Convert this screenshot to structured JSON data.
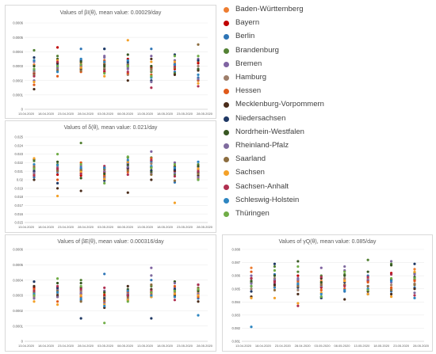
{
  "legend": {
    "entries": [
      {
        "name": "Baden-Württemberg",
        "color": "#ed7d31"
      },
      {
        "name": "Bayern",
        "color": "#c00000"
      },
      {
        "name": "Berlin",
        "color": "#2e75b6"
      },
      {
        "name": "Brandenburg",
        "color": "#548235"
      },
      {
        "name": "Bremen",
        "color": "#8064a2"
      },
      {
        "name": "Hamburg",
        "color": "#9e7e6a"
      },
      {
        "name": "Hessen",
        "color": "#e05a1a"
      },
      {
        "name": "Mecklenburg-Vorpommern",
        "color": "#4a2c1a"
      },
      {
        "name": "Niedersachsen",
        "color": "#1f3864"
      },
      {
        "name": "Nordrhein-Westfalen",
        "color": "#385723"
      },
      {
        "name": "Rheinland-Pfalz",
        "color": "#7f6b9e"
      },
      {
        "name": "Saarland",
        "color": "#8c6d3f"
      },
      {
        "name": "Sachsen",
        "color": "#f4a128"
      },
      {
        "name": "Sachsen-Anhalt",
        "color": "#b03050"
      },
      {
        "name": "Schleswig-Holstein",
        "color": "#2e86c1"
      },
      {
        "name": "Thüringen",
        "color": "#70ad47"
      }
    ]
  },
  "chart_data": [
    {
      "type": "scatter",
      "title": "Values of βI(θ), mean value: 0.00029/day",
      "ylim": [
        0,
        0.0006
      ],
      "yticks": [
        "0",
        "0.0001",
        "0.0002",
        "0.0003",
        "0.0004",
        "0.0005",
        "0.0006"
      ],
      "xticks": [
        "13.04.2020",
        "18.04.2020",
        "23.04.2020",
        "28.04.2020",
        "03.05.2020",
        "08.05.2020",
        "13.05.2020",
        "18.05.2020",
        "23.05.2020",
        "28.05.2020"
      ],
      "x": [
        0,
        1,
        2,
        3,
        4,
        5,
        6,
        7
      ],
      "series": [
        [
          0.00031,
          0.00033,
          0.00032,
          0.00033,
          0.00031,
          0.0003,
          0.00031,
          0.00033
        ],
        [
          0.00025,
          0.00043,
          0.0003,
          0.00026,
          0.00035,
          0.00029,
          0.00028,
          0.00032
        ],
        [
          0.00027,
          0.00031,
          0.00042,
          0.00042,
          0.00032,
          0.00042,
          0.00026,
          0.00022
        ],
        [
          0.00041,
          0.00037,
          0.00029,
          0.00028,
          0.0003,
          0.00026,
          0.00025,
          0.0002
        ],
        [
          0.00033,
          0.00032,
          0.0003,
          0.00037,
          0.00028,
          0.00037,
          0.00032,
          0.00035
        ],
        [
          0.00026,
          0.00028,
          0.00033,
          0.00029,
          0.00024,
          0.00027,
          0.0003,
          0.0003
        ],
        [
          0.00017,
          0.00023,
          0.00026,
          0.00034,
          0.00025,
          0.00024,
          0.00029,
          0.0002
        ],
        [
          0.00014,
          0.00032,
          0.00028,
          0.00031,
          0.0002,
          0.00035,
          0.00024,
          0.00027
        ],
        [
          0.00036,
          0.0003,
          0.00034,
          0.00042,
          0.00033,
          0.0002,
          0.00038,
          0.00034
        ],
        [
          0.0003,
          0.00035,
          0.00033,
          0.0003,
          0.00038,
          0.0003,
          0.00031,
          0.00028
        ],
        [
          0.0002,
          0.00029,
          0.00035,
          0.00036,
          0.00029,
          0.00019,
          0.00034,
          0.00021
        ],
        [
          0.00024,
          0.00027,
          0.00027,
          0.00032,
          0.00031,
          0.00028,
          0.00029,
          0.00045
        ],
        [
          0.00019,
          0.00034,
          0.00029,
          0.00023,
          0.00048,
          0.00033,
          0.00033,
          0.00018
        ],
        [
          0.00023,
          0.00033,
          0.00031,
          0.00027,
          0.00026,
          0.00015,
          0.0003,
          0.00016
        ],
        [
          0.00034,
          0.00026,
          0.00035,
          0.00033,
          0.00034,
          0.00022,
          0.00031,
          0.00024
        ],
        [
          0.00028,
          0.0003,
          0.00031,
          0.00025,
          0.0003,
          0.00023,
          0.00037,
          0.00037
        ]
      ]
    },
    {
      "type": "scatter",
      "title": "Values of δ(θ), mean value: 0.021/day",
      "ylim": [
        0.015,
        0.025
      ],
      "yticks": [
        "0.015",
        "0.016",
        "0.017",
        "0.018",
        "0.019",
        "0.02",
        "0.021",
        "0.022",
        "0.023",
        "0.024",
        "0.025"
      ],
      "xticks": [
        "13.04.2020",
        "18.04.2020",
        "23.04.2020",
        "28.04.2020",
        "03.05.2020",
        "08.05.2020",
        "13.05.2020",
        "18.05.2020",
        "23.05.2020",
        "28.05.2020"
      ],
      "x": [
        0,
        1,
        2,
        3,
        4,
        5,
        6,
        7
      ],
      "series": [
        [
          0.0217,
          0.0215,
          0.021,
          0.0207,
          0.022,
          0.0222,
          0.0215,
          0.0212
        ],
        [
          0.021,
          0.0206,
          0.0205,
          0.0209,
          0.0213,
          0.0215,
          0.021,
          0.0208
        ],
        [
          0.0203,
          0.0209,
          0.0213,
          0.0204,
          0.0219,
          0.0221,
          0.0197,
          0.02
        ],
        [
          0.0222,
          0.0218,
          0.0243,
          0.0212,
          0.0226,
          0.0226,
          0.0206,
          0.0218
        ],
        [
          0.0212,
          0.0214,
          0.0216,
          0.021,
          0.0218,
          0.0233,
          0.022,
          0.0215
        ],
        [
          0.0214,
          0.021,
          0.0212,
          0.0203,
          0.0221,
          0.0219,
          0.0213,
          0.0212
        ],
        [
          0.0206,
          0.02,
          0.022,
          0.0205,
          0.0209,
          0.0225,
          0.0216,
          0.0202
        ],
        [
          0.02,
          0.019,
          0.0187,
          0.0214,
          0.0185,
          0.02,
          0.0211,
          0.0205
        ],
        [
          0.021,
          0.0196,
          0.0211,
          0.0199,
          0.0214,
          0.0211,
          0.0212,
          0.0209
        ],
        [
          0.0224,
          0.0221,
          0.0202,
          0.0207,
          0.0217,
          0.0209,
          0.0215,
          0.0216
        ],
        [
          0.0208,
          0.0212,
          0.0208,
          0.0202,
          0.0215,
          0.0207,
          0.0208,
          0.0203
        ],
        [
          0.0215,
          0.0211,
          0.0211,
          0.0212,
          0.0211,
          0.0206,
          0.0199,
          0.0207
        ],
        [
          0.0225,
          0.0181,
          0.0209,
          0.0201,
          0.0221,
          0.0214,
          0.0173,
          0.0213
        ],
        [
          0.0205,
          0.0213,
          0.0207,
          0.0216,
          0.0206,
          0.0223,
          0.0204,
          0.021
        ],
        [
          0.0218,
          0.0217,
          0.0214,
          0.0214,
          0.0223,
          0.0216,
          0.0214,
          0.0221
        ],
        [
          0.0213,
          0.023,
          0.0218,
          0.0196,
          0.0227,
          0.0214,
          0.0218,
          0.02
        ]
      ]
    },
    {
      "type": "scatter",
      "title": "Values of βE(θ), mean value: 0.000316/day",
      "ylim": [
        0,
        0.0006
      ],
      "yticks": [
        "0",
        "0.0001",
        "0.0002",
        "0.0003",
        "0.0004",
        "0.0005",
        "0.0006"
      ],
      "xticks": [
        "13.04.2020",
        "18.04.2020",
        "23.04.2020",
        "28.04.2020",
        "03.05.2020",
        "08.05.2020",
        "13.05.2020",
        "18.05.2020",
        "23.05.2020",
        "28.05.2020"
      ],
      "x": [
        0,
        1,
        2,
        3,
        4,
        5,
        6,
        7
      ],
      "series": [
        [
          0.00033,
          0.00032,
          0.00033,
          0.00031,
          0.00032,
          0.00032,
          0.00033,
          0.00032
        ],
        [
          0.00035,
          0.00029,
          0.00031,
          0.0003,
          0.00033,
          0.00032,
          0.00029,
          0.00034
        ],
        [
          0.0003,
          0.00033,
          0.00027,
          0.00044,
          0.0003,
          0.0004,
          0.00031,
          0.00028
        ],
        [
          0.00032,
          0.00034,
          0.0004,
          0.00029,
          0.00031,
          0.00036,
          0.00034,
          0.00033
        ],
        [
          0.0003,
          0.00034,
          0.00032,
          0.00033,
          0.00027,
          0.00048,
          0.00035,
          0.00031
        ],
        [
          0.00029,
          0.00031,
          0.00033,
          0.00029,
          0.00028,
          0.0003,
          0.00032,
          0.0003
        ],
        [
          0.00034,
          0.00026,
          0.00029,
          0.00026,
          0.00032,
          0.00031,
          0.00036,
          0.00029
        ],
        [
          0.00036,
          0.0003,
          0.00035,
          0.00022,
          0.00036,
          0.00034,
          0.0003,
          0.00026
        ],
        [
          0.00039,
          0.00035,
          0.00015,
          0.00028,
          0.0003,
          0.00015,
          0.00034,
          0.00037
        ],
        [
          0.00031,
          0.00038,
          0.00038,
          0.00032,
          0.00034,
          0.00029,
          0.00039,
          0.00033
        ],
        [
          0.00028,
          0.00029,
          0.00031,
          0.00025,
          0.00031,
          0.00043,
          0.00038,
          0.00031
        ],
        [
          0.00032,
          0.00033,
          0.00026,
          0.00027,
          0.00029,
          0.00037,
          0.00033,
          0.00035
        ],
        [
          0.00026,
          0.00024,
          0.0003,
          0.00024,
          0.00027,
          0.00029,
          0.00031,
          0.0003
        ],
        [
          0.00033,
          0.00036,
          0.00034,
          0.00035,
          0.0003,
          0.00033,
          0.00027,
          0.00037
        ],
        [
          0.00031,
          0.00032,
          0.00028,
          0.00023,
          0.00033,
          0.0003,
          0.00029,
          0.00017
        ],
        [
          0.0003,
          0.00041,
          0.00036,
          0.00012,
          0.00026,
          0.00032,
          0.00033,
          0.00034
        ]
      ]
    },
    {
      "type": "scatter",
      "title": "Values of γQ(θ), mean value: 0.085/day",
      "ylim": [
        0.081,
        0.088
      ],
      "yticks": [
        "0.081",
        "0.082",
        "0.083",
        "0.084",
        "0.085",
        "0.086",
        "0.087",
        "0.088"
      ],
      "xticks": [
        "13.04.2020",
        "18.04.2020",
        "23.04.2020",
        "28.04.2020",
        "03.05.2020",
        "08.05.2020",
        "13.05.2020",
        "18.05.2020",
        "23.05.2020",
        "28.05.2020"
      ],
      "x": [
        0,
        1,
        2,
        3,
        4,
        5,
        6,
        7
      ],
      "series": [
        [
          0.0866,
          0.0852,
          0.0855,
          0.0856,
          0.0857,
          0.0858,
          0.085,
          0.0865
        ],
        [
          0.0858,
          0.0856,
          0.086,
          0.0851,
          0.0853,
          0.0856,
          0.0862,
          0.0857
        ],
        [
          0.0852,
          0.0861,
          0.0853,
          0.0844,
          0.0848,
          0.086,
          0.0848,
          0.0851
        ],
        [
          0.0855,
          0.0867,
          0.0863,
          0.086,
          0.0861,
          0.0872,
          0.0869,
          0.0862
        ],
        [
          0.086,
          0.0854,
          0.0858,
          0.0866,
          0.0864,
          0.0852,
          0.0855,
          0.0861
        ],
        [
          0.085,
          0.0858,
          0.0849,
          0.0854,
          0.0858,
          0.085,
          0.0853,
          0.0854
        ],
        [
          0.0863,
          0.0851,
          0.0856,
          0.0849,
          0.085,
          0.0855,
          0.0851,
          0.0856
        ],
        [
          0.0844,
          0.0853,
          0.0846,
          0.0858,
          0.0842,
          0.0848,
          0.0846,
          0.085
        ],
        [
          0.0848,
          0.0869,
          0.0851,
          0.0843,
          0.0855,
          0.0846,
          0.0857,
          0.0869
        ],
        [
          0.0856,
          0.086,
          0.0871,
          0.0855,
          0.086,
          0.0863,
          0.0868,
          0.0859
        ],
        [
          0.0854,
          0.0857,
          0.0857,
          0.0852,
          0.0867,
          0.0857,
          0.0871,
          0.0847
        ],
        [
          0.0858,
          0.0849,
          0.0852,
          0.0853,
          0.0853,
          0.0852,
          0.0849,
          0.0853
        ],
        [
          0.0843,
          0.0843,
          0.0839,
          0.0847,
          0.0856,
          0.0846,
          0.0844,
          0.0863
        ],
        [
          0.0858,
          0.0855,
          0.0837,
          0.0859,
          0.0852,
          0.0859,
          0.0861,
          0.0845
        ],
        [
          0.0821,
          0.0851,
          0.0854,
          0.0846,
          0.0849,
          0.085,
          0.0856,
          0.0843
        ],
        [
          0.0852,
          0.0864,
          0.0867,
          0.0844,
          0.0863,
          0.0849,
          0.0858,
          0.0858
        ]
      ]
    }
  ]
}
